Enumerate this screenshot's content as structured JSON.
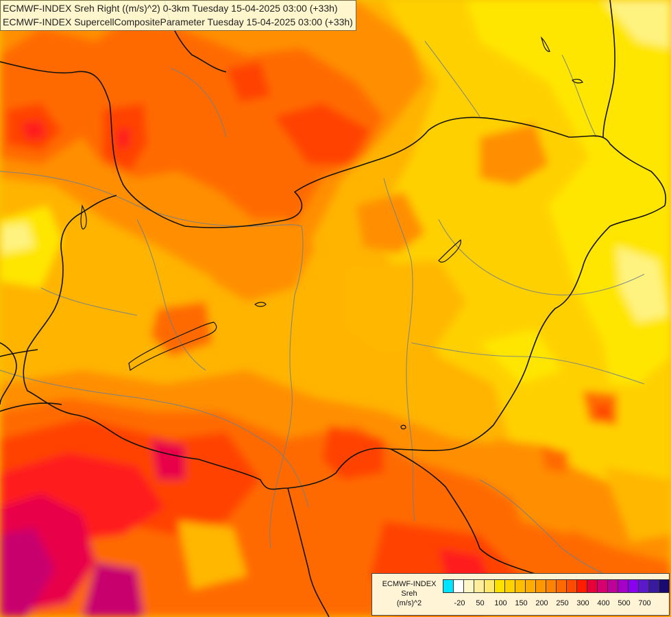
{
  "titles": {
    "line1": "ECMWF-INDEX Sreh Right ((m/s)^2) 0-3km Tuesday 15-04-2025 03:00 (+33h)",
    "line2": "ECMWF-INDEX SupercellCompositeParameter Tuesday 15-04-2025 03:00 (+33h)"
  },
  "legend": {
    "line1": "ECMWF-INDEX",
    "line2": "Sreh",
    "line3": "(m/s)^2",
    "colors": [
      "#00e5ff",
      "#ffffff",
      "#fff6c8",
      "#ffef9c",
      "#ffe96a",
      "#ffe100",
      "#ffd200",
      "#ffbf00",
      "#ffac00",
      "#ff9800",
      "#ff8200",
      "#ff6a00",
      "#ff4a00",
      "#ff1c00",
      "#e8003a",
      "#d6006e",
      "#c0009a",
      "#a400c8",
      "#8a00f0",
      "#5a1ac8",
      "#3a1a9c",
      "#1a0a70"
    ],
    "ticks": [
      "-20",
      "50",
      "100",
      "150",
      "200",
      "250",
      "300",
      "400",
      "500",
      "700"
    ]
  },
  "palette": {
    "base": "#fda000",
    "light_yellow": "#ffe600",
    "yellow": "#ffd000",
    "amber": "#ffb700",
    "orange": "#ff8f00",
    "dark_orange": "#ff6a00",
    "red_orange": "#ff4300",
    "red": "#ff1d1a",
    "crimson": "#e8004a",
    "magenta": "#c8006e",
    "pale": "#fff380"
  }
}
